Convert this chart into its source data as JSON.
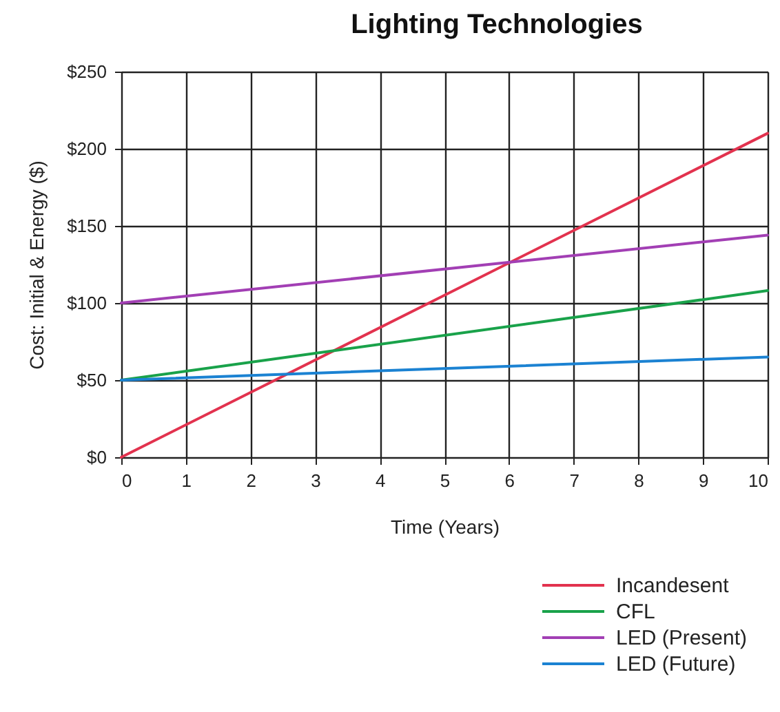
{
  "chart_data": {
    "type": "line",
    "title": "Lighting Technologies",
    "xlabel": "Time (Years)",
    "ylabel": "Cost: Initial & Energy ($)",
    "x": [
      0,
      10
    ],
    "series": [
      {
        "name": "Incandesent",
        "color": "#e2324e",
        "values": [
          0,
          210
        ]
      },
      {
        "name": "CFL",
        "color": "#19a24a",
        "values": [
          50,
          108
        ]
      },
      {
        "name": "LED (Present)",
        "color": "#a23fb4",
        "values": [
          100,
          144
        ]
      },
      {
        "name": "LED (Future)",
        "color": "#1b82d2",
        "values": [
          50,
          65
        ]
      }
    ],
    "xlim": [
      0,
      10
    ],
    "xticks": [
      0,
      1,
      2,
      3,
      4,
      5,
      6,
      7,
      8,
      9,
      10
    ],
    "ylim": [
      0,
      250
    ],
    "yticks": [
      {
        "value": 0,
        "label": "$0"
      },
      {
        "value": 50,
        "label": "$50"
      },
      {
        "value": 100,
        "label": "$100"
      },
      {
        "value": 150,
        "label": "$150"
      },
      {
        "value": 200,
        "label": "$200"
      },
      {
        "value": 250,
        "label": "$250"
      }
    ],
    "grid": true,
    "legend": "bottom right"
  }
}
